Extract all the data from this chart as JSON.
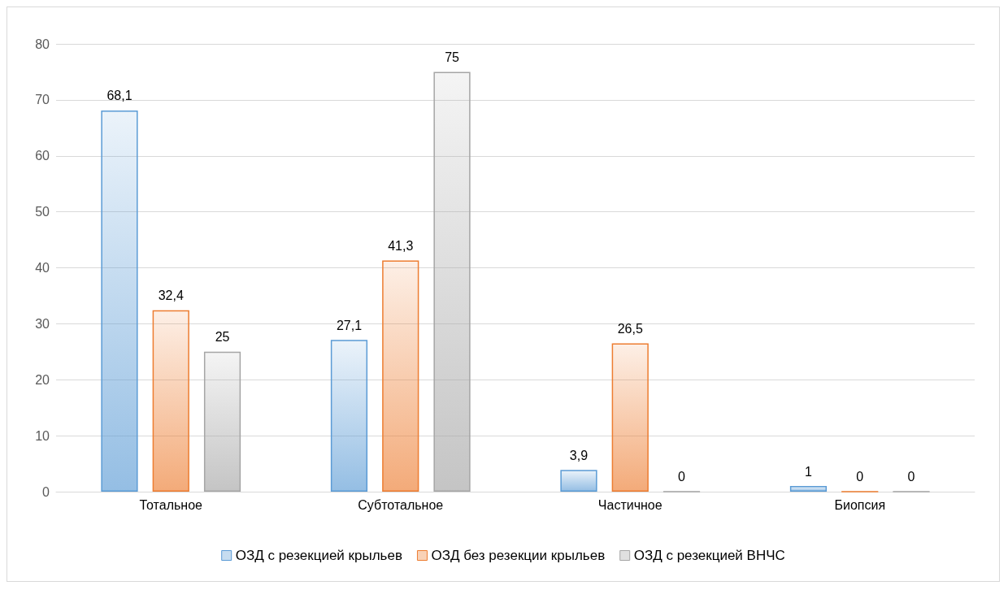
{
  "chart_data": {
    "type": "bar",
    "categories": [
      "Тотальное",
      "Субтотальное",
      "Частичное",
      "Биопсия"
    ],
    "series": [
      {
        "name": "ОЗД с резекцией крыльев",
        "color": "#5b9bd5",
        "values": [
          68.1,
          27.1,
          3.9,
          1
        ],
        "value_labels": [
          "68,1",
          "27,1",
          "3,9",
          "1"
        ]
      },
      {
        "name": "ОЗД без резекции крыльев",
        "color": "#ed7d31",
        "values": [
          32.4,
          41.3,
          26.5,
          0
        ],
        "value_labels": [
          "32,4",
          "41,3",
          "26,5",
          "0"
        ]
      },
      {
        "name": "ОЗД с резекцией ВНЧС",
        "color": "#a5a5a5",
        "values": [
          25,
          75,
          0,
          0
        ],
        "value_labels": [
          "25",
          "75",
          "0",
          "0"
        ]
      }
    ],
    "ylim": [
      0,
      80
    ],
    "yticks": [
      0,
      10,
      20,
      30,
      40,
      50,
      60,
      70,
      80
    ],
    "grid": "y",
    "legend": "bottom"
  }
}
